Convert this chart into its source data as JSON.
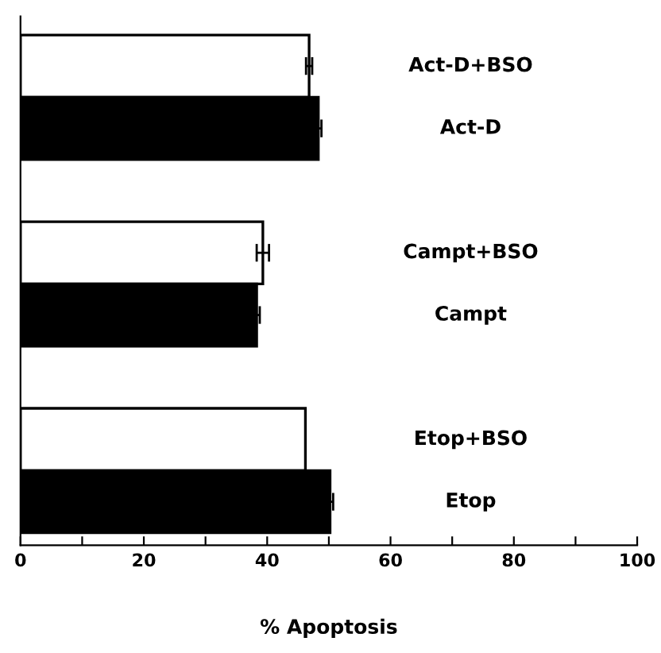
{
  "chart_data": {
    "type": "bar",
    "orientation": "horizontal",
    "xlabel": "% Apoptosis",
    "categories": [
      "Act-D+BSO",
      "Act-D",
      null,
      "Campt+BSO",
      "Campt",
      null,
      "Etop+BSO",
      "Etop"
    ],
    "values": [
      46.8,
      48.3,
      null,
      39.3,
      38.3,
      null,
      46.2,
      50.2
    ],
    "errors": [
      0.5,
      0.5,
      null,
      1,
      0.5,
      null,
      null,
      0.5
    ],
    "colors": [
      "#ffffff",
      "#000000",
      null,
      "#ffffff",
      "#000000",
      null,
      "#ffffff",
      "#000000"
    ],
    "xlim": [
      0,
      100
    ],
    "xticks": [
      0,
      {
        "value": 10,
        "label": null
      },
      20,
      {
        "value": 30,
        "label": null
      },
      40,
      {
        "value": 50,
        "label": null
      },
      60,
      {
        "value": 70,
        "label": null
      },
      80,
      {
        "value": 90,
        "label": null
      },
      100
    ],
    "grid": false,
    "legend": false
  }
}
